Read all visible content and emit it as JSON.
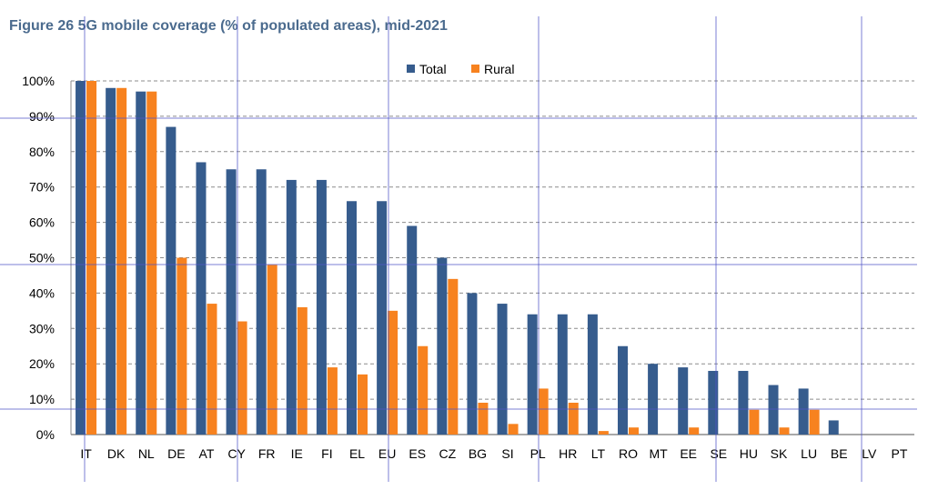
{
  "title": "Figure 26 5G mobile coverage (% of populated areas), mid-2021",
  "colors": {
    "total": "#365c8d",
    "rural": "#f7821f",
    "grid": "#8c8c8c",
    "overlay": "#5055c8"
  },
  "chart_data": {
    "type": "bar",
    "title": "Figure 26 5G mobile coverage (% of populated areas), mid-2021",
    "xlabel": "",
    "ylabel": "",
    "ylim": [
      0,
      100
    ],
    "yticks": [
      "0%",
      "10%",
      "20%",
      "30%",
      "40%",
      "50%",
      "60%",
      "70%",
      "80%",
      "90%",
      "100%"
    ],
    "legend_position": "top",
    "grid": true,
    "categories": [
      "IT",
      "DK",
      "NL",
      "DE",
      "AT",
      "CY",
      "FR",
      "IE",
      "FI",
      "EL",
      "EU",
      "ES",
      "CZ",
      "BG",
      "SI",
      "PL",
      "HR",
      "LT",
      "RO",
      "MT",
      "EE",
      "SE",
      "HU",
      "SK",
      "LU",
      "BE",
      "LV",
      "PT"
    ],
    "series": [
      {
        "name": "Total",
        "values": [
          100,
          98,
          97,
          87,
          77,
          75,
          75,
          72,
          72,
          66,
          66,
          59,
          50,
          40,
          37,
          34,
          34,
          34,
          25,
          20,
          19,
          18,
          18,
          14,
          13,
          4,
          0,
          0
        ]
      },
      {
        "name": "Rural",
        "values": [
          100,
          98,
          97,
          50,
          37,
          32,
          48,
          36,
          19,
          17,
          35,
          25,
          44,
          9,
          3,
          13,
          9,
          1,
          2,
          0,
          2,
          0,
          7,
          2,
          7,
          0,
          0,
          0
        ]
      }
    ]
  }
}
